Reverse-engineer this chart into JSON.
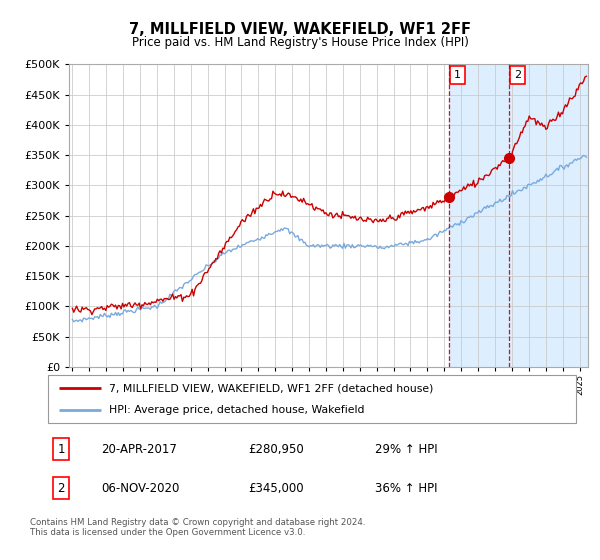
{
  "title": "7, MILLFIELD VIEW, WAKEFIELD, WF1 2FF",
  "subtitle": "Price paid vs. HM Land Registry's House Price Index (HPI)",
  "footer": "Contains HM Land Registry data © Crown copyright and database right 2024.\nThis data is licensed under the Open Government Licence v3.0.",
  "legend_line1": "7, MILLFIELD VIEW, WAKEFIELD, WF1 2FF (detached house)",
  "legend_line2": "HPI: Average price, detached house, Wakefield",
  "annotation1_label": "1",
  "annotation1_date": "20-APR-2017",
  "annotation1_price": "£280,950",
  "annotation1_hpi": "29% ↑ HPI",
  "annotation2_label": "2",
  "annotation2_date": "06-NOV-2020",
  "annotation2_price": "£345,000",
  "annotation2_hpi": "36% ↑ HPI",
  "red_color": "#cc0000",
  "blue_color": "#7aaadd",
  "shade_color": "#ddeeff",
  "grid_color": "#cccccc",
  "background_color": "#ffffff",
  "sale1_x": 2017.3,
  "sale1_y": 280950,
  "sale2_x": 2020.85,
  "sale2_y": 345000,
  "ylim": [
    0,
    500000
  ],
  "xlim_start": 1994.8,
  "xlim_end": 2025.5
}
